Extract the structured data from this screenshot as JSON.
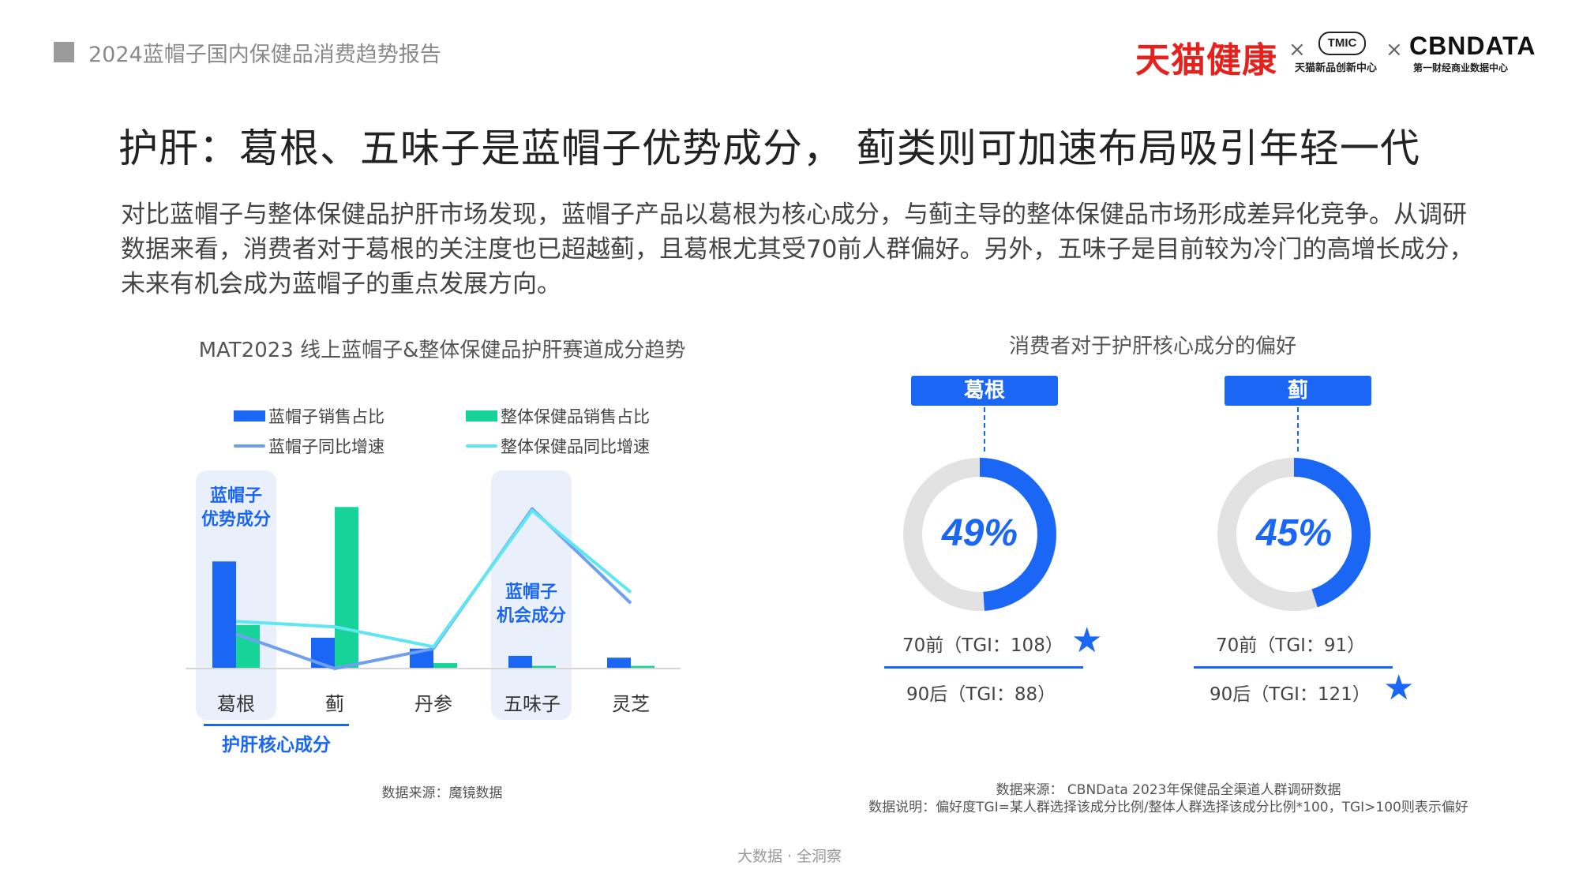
{
  "header": {
    "report_title": "2024蓝帽子国内保健品消费趋势报告",
    "logo_tmall": "天猫健康",
    "logo_sep1": "×",
    "logo_tmic": "TMIC",
    "logo_tmic_sub": "天猫新品创新中心",
    "logo_sep2": "×",
    "logo_cbn": "CBNDATA",
    "logo_cbn_sub": "第一财经商业数据中心",
    "brand_red": "#e8201c"
  },
  "slide": {
    "title": "护肝：葛根、五味子是蓝帽子优势成分， 蓟类则可加速布局吸引年轻一代",
    "intro": "对比蓝帽子与整体保健品护肝市场发现，蓝帽子产品以葛根为核心成分，与蓟主导的整体保健品市场形成差异化竞争。从调研数据来看，消费者对于葛根的关注度也已超越蓟，且葛根尤其受70前人群偏好。另外，五味子是目前较为冷门的高增长成分，未来有机会成为蓝帽子的重点发展方向。"
  },
  "left_chart": {
    "title": "MAT2023 线上蓝帽子&整体保健品护肝赛道成分趋势",
    "legend": {
      "bar1": "蓝帽子销售占比",
      "bar2": "整体保健品销售占比",
      "line1": "蓝帽子同比增速",
      "line2": "整体保健品同比增速"
    },
    "highlight_advantage": "蓝帽子\n优势成分",
    "highlight_opportunity": "蓝帽子\n机会成分",
    "core_label": "护肝核心成分",
    "source": "数据来源：魔镜数据"
  },
  "right_panel": {
    "title": "消费者对于护肝核心成分的偏好",
    "items": [
      {
        "name": "葛根",
        "percent_label": "49%",
        "percent": 49,
        "tgi_70": "70前（TGI：108）",
        "tgi_90": "90后（TGI：88）",
        "star_on": "70"
      },
      {
        "name": "蓟",
        "percent_label": "45%",
        "percent": 45,
        "tgi_70": "70前（TGI：91）",
        "tgi_90": "90后（TGI：121）",
        "star_on": "90"
      }
    ],
    "star_icon": "star-icon",
    "source_line1": "数据来源： CBNData 2023年保健品全渠道人群调研数据",
    "source_line2": "数据说明：偏好度TGI=某人群选择该成分比例/整体人群选择该成分比例*100，TGI>100则表示偏好"
  },
  "footer": "大数据 · 全洞察",
  "colors": {
    "blue": "#1a66f5",
    "green": "#16d39a",
    "line_blue": "#6fa0f0",
    "line_cyan": "#5ee6f2",
    "ring_gray": "#e2e2e2",
    "highlight_bg": "#eaf0fb"
  },
  "chart_data": [
    {
      "type": "bar",
      "title": "MAT2023 线上蓝帽子&整体保健品护肝赛道成分趋势",
      "categories": [
        "葛根",
        "蓟",
        "丹参",
        "五味子",
        "灵芝"
      ],
      "series": [
        {
          "name": "蓝帽子销售占比",
          "kind": "bar",
          "color": "#1a66f5",
          "values": [
            0.59,
            0.17,
            0.11,
            0.07,
            0.06
          ]
        },
        {
          "name": "整体保健品销售占比",
          "kind": "bar",
          "color": "#16d39a",
          "values": [
            0.24,
            0.89,
            0.03,
            0.015,
            0.015
          ]
        },
        {
          "name": "蓝帽子同比增速",
          "kind": "line",
          "color": "#6fa0f0",
          "values": [
            0.19,
            0.0,
            0.11,
            0.88,
            0.36
          ]
        },
        {
          "name": "整体保健品同比增速",
          "kind": "line",
          "color": "#5ee6f2",
          "values": [
            0.26,
            0.23,
            0.12,
            0.87,
            0.42
          ]
        }
      ],
      "ylim": [
        0,
        1
      ],
      "grid": false,
      "legend": "top"
    },
    {
      "type": "pie",
      "title": "消费者对于护肝核心成分的偏好",
      "categories": [
        "葛根",
        "蓟"
      ],
      "values": [
        49,
        45
      ],
      "unit": "%"
    }
  ]
}
